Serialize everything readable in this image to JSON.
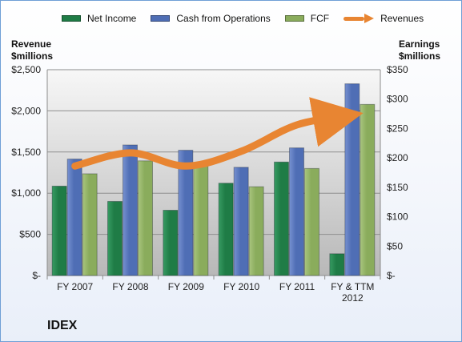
{
  "legend": {
    "items": [
      {
        "label": "Net Income",
        "type": "bar"
      },
      {
        "label": "Cash from Operations",
        "type": "bar"
      },
      {
        "label": "FCF",
        "type": "bar"
      },
      {
        "label": "Revenues",
        "type": "line"
      }
    ]
  },
  "colors": {
    "net_income": "#1f7c46",
    "cash_from_operations": "#4f6eb5",
    "fcf": "#8aac5c",
    "revenues": "#e88532",
    "plot_top": "#f7f7f7",
    "plot_bottom": "#b8b8b8",
    "grid": "#8e8e8e",
    "axis": "#8c8c8c"
  },
  "chart_data": {
    "type": "bar",
    "company": "IDEX",
    "categories": [
      "FY 2007",
      "FY 2008",
      "FY 2009",
      "FY 2010",
      "FY 2011",
      "FY & TTM\n2012"
    ],
    "left_axis_title": "Revenue\n$millions",
    "right_axis_title": "Earnings\n$millions",
    "left_ticks": [
      "$-",
      "$500",
      "$1,000",
      "$1,500",
      "$2,000",
      "$2,500"
    ],
    "right_ticks": [
      "$-",
      "$50",
      "$100",
      "$150",
      "$200",
      "$250",
      "$300",
      "$350"
    ],
    "left_ylim": [
      0,
      2500
    ],
    "right_ylim": [
      0,
      350
    ],
    "grid": true,
    "legend_position": "top",
    "series": [
      {
        "name": "Net Income",
        "axis": "right",
        "values": [
          152,
          126,
          111,
          157,
          193,
          37
        ]
      },
      {
        "name": "Cash from Operations",
        "axis": "right",
        "values": [
          198,
          222,
          213,
          184,
          217,
          326
        ]
      },
      {
        "name": "FCF",
        "axis": "right",
        "values": [
          173,
          195,
          188,
          151,
          182,
          291
        ]
      },
      {
        "name": "Revenues",
        "axis": "left",
        "values": [
          1330,
          1490,
          1330,
          1510,
          1830,
          1950
        ]
      }
    ]
  }
}
